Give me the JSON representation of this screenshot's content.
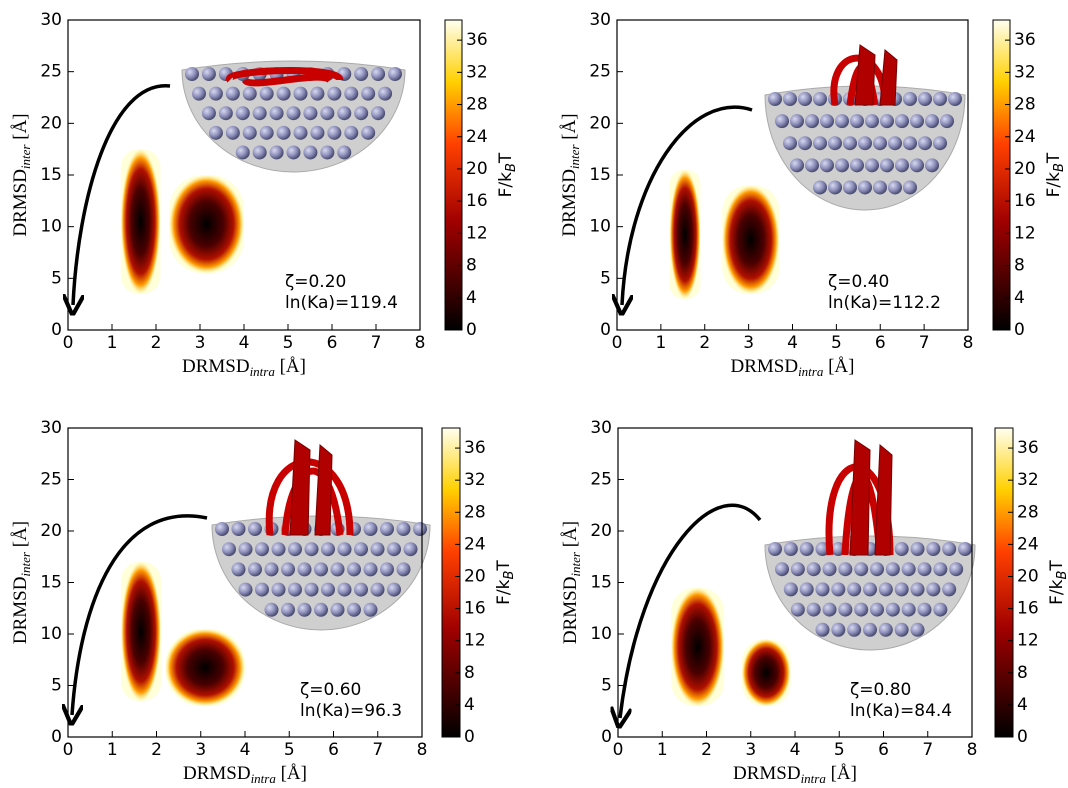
{
  "chart_data": [
    {
      "type": "density",
      "x_label": [
        "DRMSD",
        "intra",
        " [Å]"
      ],
      "y_label": [
        "DRMSD",
        "inter",
        " [Å]"
      ],
      "colorbar_label": [
        "F/k",
        "B",
        "T"
      ],
      "annotations": [
        "ζ=0.20",
        "ln(Ka)=119.4"
      ],
      "clusters": [
        {
          "x": [
            1.2,
            2.1
          ],
          "y": [
            3.5,
            17.5
          ]
        },
        {
          "x": [
            2.3,
            4.0
          ],
          "y": [
            5.5,
            15
          ]
        }
      ],
      "xlim": [
        0,
        8
      ],
      "xticks": [
        0,
        1,
        2,
        3,
        4,
        5,
        6,
        7,
        8
      ],
      "ylim": [
        0,
        30
      ],
      "yticks": [
        0,
        5,
        10,
        15,
        20,
        25,
        30
      ],
      "clim": [
        0,
        38.5
      ],
      "cticks": [
        0,
        4,
        8,
        12,
        16,
        20,
        24,
        28,
        32,
        36
      ]
    },
    {
      "type": "density",
      "x_label": [
        "DRMSD",
        "intra",
        " [Å]"
      ],
      "y_label": [
        "DRMSD",
        "inter",
        " [Å]"
      ],
      "colorbar_label": [
        "F/k",
        "B",
        "T"
      ],
      "annotations": [
        "ζ=0.40",
        "ln(Ka)=112.2"
      ],
      "clusters": [
        {
          "x": [
            1.2,
            1.9
          ],
          "y": [
            3,
            15.5
          ]
        },
        {
          "x": [
            2.4,
            3.7
          ],
          "y": [
            3.5,
            14
          ]
        }
      ],
      "xlim": [
        0,
        8
      ],
      "xticks": [
        0,
        1,
        2,
        3,
        4,
        5,
        6,
        7,
        8
      ],
      "ylim": [
        0,
        30
      ],
      "yticks": [
        0,
        5,
        10,
        15,
        20,
        25,
        30
      ],
      "clim": [
        0,
        38.5
      ],
      "cticks": [
        0,
        4,
        8,
        12,
        16,
        20,
        24,
        28,
        32,
        36
      ]
    },
    {
      "type": "density",
      "x_label": [
        "DRMSD",
        "intra",
        " [Å]"
      ],
      "y_label": [
        "DRMSD",
        "inter",
        " [Å]"
      ],
      "colorbar_label": [
        "F/k",
        "B",
        "T"
      ],
      "annotations": [
        "ζ=0.60",
        "ln(Ka)=96.3"
      ],
      "clusters": [
        {
          "x": [
            1.2,
            2.1
          ],
          "y": [
            3.5,
            17
          ]
        },
        {
          "x": [
            2.2,
            4.0
          ],
          "y": [
            3,
            10.5
          ]
        }
      ],
      "xlim": [
        0,
        8
      ],
      "xticks": [
        0,
        1,
        2,
        3,
        4,
        5,
        6,
        7,
        8
      ],
      "ylim": [
        0,
        30
      ],
      "yticks": [
        0,
        5,
        10,
        15,
        20,
        25,
        30
      ],
      "clim": [
        0,
        38.5
      ],
      "cticks": [
        0,
        4,
        8,
        12,
        16,
        20,
        24,
        28,
        32,
        36
      ]
    },
    {
      "type": "density",
      "x_label": [
        "DRMSD",
        "intra",
        " [Å]"
      ],
      "y_label": [
        "DRMSD",
        "inter",
        " [Å]"
      ],
      "colorbar_label": [
        "F/k",
        "B",
        "T"
      ],
      "annotations": [
        "ζ=0.80",
        "ln(Ka)=84.4"
      ],
      "clusters": [
        {
          "x": [
            1.2,
            2.4
          ],
          "y": [
            3,
            14.5
          ]
        },
        {
          "x": [
            2.8,
            3.9
          ],
          "y": [
            3,
            9.5
          ]
        }
      ],
      "xlim": [
        0,
        8
      ],
      "xticks": [
        0,
        1,
        2,
        3,
        4,
        5,
        6,
        7,
        8
      ],
      "ylim": [
        0,
        30
      ],
      "yticks": [
        0,
        5,
        10,
        15,
        20,
        25,
        30
      ],
      "clim": [
        0,
        38.5
      ],
      "cticks": [
        0,
        4,
        8,
        12,
        16,
        20,
        24,
        28,
        32,
        36
      ]
    }
  ]
}
